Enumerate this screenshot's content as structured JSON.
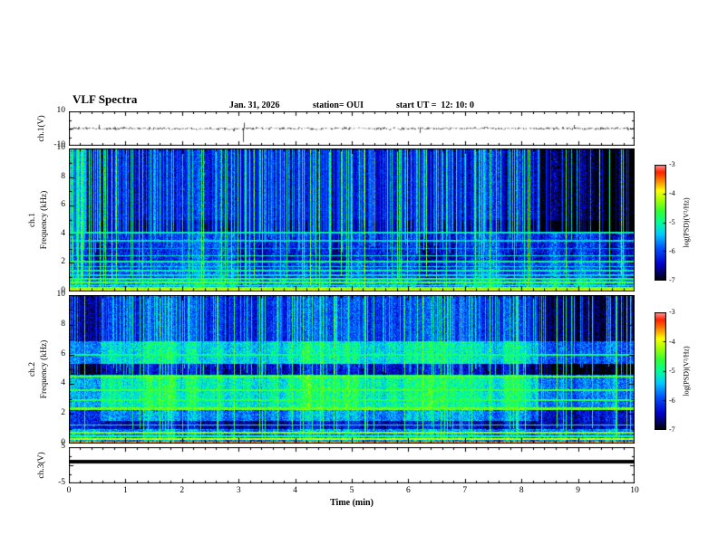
{
  "header": {
    "title": "VLF Spectra",
    "date": "Jan. 31, 2026",
    "station": "station= OUI",
    "start_ut": "start UT =  12: 10: 0"
  },
  "chart_data": {
    "type": "heatmap",
    "title": "VLF Spectra",
    "xlabel": "Time (min)",
    "xlim": [
      0,
      10
    ],
    "xticks": [
      0,
      1,
      2,
      3,
      4,
      5,
      6,
      7,
      8,
      9,
      10
    ],
    "colorbar": {
      "label": "log(PSD)(V²/Hz)",
      "lim": [
        -7,
        -3
      ],
      "ticks": [
        "-3",
        "-4",
        "-5",
        "-6",
        "-7"
      ]
    },
    "colormap": [
      [
        0,
        "#000000"
      ],
      [
        0.05,
        "#00004d"
      ],
      [
        0.14,
        "#0000cc"
      ],
      [
        0.28,
        "#0055ff"
      ],
      [
        0.4,
        "#00ccff"
      ],
      [
        0.5,
        "#00ff99"
      ],
      [
        0.6,
        "#33ff33"
      ],
      [
        0.7,
        "#aaff00"
      ],
      [
        0.78,
        "#ffff00"
      ],
      [
        0.86,
        "#ff8800"
      ],
      [
        0.94,
        "#ff2200"
      ],
      [
        1,
        "#ff9999"
      ]
    ],
    "panels": [
      {
        "id": "wave1",
        "type": "line",
        "ylabel": "ch.1(V)",
        "ylim": [
          -10,
          10
        ],
        "ytick_labels": [
          {
            "v": 10,
            "t": "10"
          },
          {
            "v": -10,
            "t": "-10"
          }
        ],
        "noise_amp": 1.1,
        "spikes": [
          {
            "t": 0.53,
            "amp": 2.2
          },
          {
            "t": 3.07,
            "amp": -7.8
          },
          {
            "t": 3.1,
            "amp": 3.4
          },
          {
            "t": 6.2,
            "amp": -2.6
          },
          {
            "t": 8.92,
            "amp": 2.1
          }
        ],
        "seed": 1234
      },
      {
        "id": "spec1",
        "type": "heatmap",
        "ylabel_lines": [
          "ch.1",
          "Frequency (kHz)"
        ],
        "ylim": [
          0,
          10
        ],
        "yticks": [
          0,
          2,
          4,
          6,
          8,
          10
        ],
        "seed": 20260131,
        "noise": 0.65,
        "bands": [
          {
            "f0": 5.0,
            "f1": 10.01,
            "v": -6.45
          },
          {
            "f0": 4.05,
            "f1": 5.0,
            "v": -6.95
          },
          {
            "f0": 2.05,
            "f1": 4.05,
            "v": -6.15
          },
          {
            "f0": 0.85,
            "f1": 2.05,
            "v": -5.9
          },
          {
            "f0": 0.0,
            "f1": 0.85,
            "v": -5.45
          }
        ],
        "lines": [
          {
            "f": 4.1,
            "v": -5.1,
            "w": 0.07
          },
          {
            "f": 3.55,
            "v": -5.35,
            "w": 0.06
          },
          {
            "f": 3.0,
            "v": -5.7,
            "w": 0.05
          },
          {
            "f": 2.5,
            "v": -5.25,
            "w": 0.06
          },
          {
            "f": 2.1,
            "v": -4.95,
            "w": 0.07
          },
          {
            "f": 1.75,
            "v": -5.4,
            "w": 0.05
          },
          {
            "f": 1.45,
            "v": -5.05,
            "w": 0.06
          },
          {
            "f": 1.15,
            "v": -5.3,
            "w": 0.05
          },
          {
            "f": 0.9,
            "v": -4.75,
            "w": 0.07
          },
          {
            "f": 0.62,
            "v": -4.55,
            "w": 0.07
          },
          {
            "f": 0.42,
            "v": -5.0,
            "w": 0.05
          },
          {
            "f": 0.27,
            "v": -4.35,
            "w": 0.06
          },
          {
            "f": 0.13,
            "v": -3.95,
            "w": 0.05
          },
          {
            "f": 0.04,
            "v": -3.45,
            "w": 0.045
          }
        ],
        "streaks": {
          "pMain": 0.78,
          "ampMax": 2.6,
          "fFloor": 4.3
        },
        "quiet": {
          "after": 8.33,
          "before": -1,
          "f": 4.05,
          "delta": -0.5,
          "p": 0.25
        },
        "burst_before": 0.28
      },
      {
        "id": "spec2",
        "type": "heatmap",
        "ylabel_lines": [
          "ch.2",
          "Frequency (kHz)"
        ],
        "ylim": [
          0,
          10
        ],
        "yticks": [
          0,
          2,
          4,
          6,
          8,
          10
        ],
        "seed": 98765,
        "noise": 0.6,
        "bands": [
          {
            "f0": 6.9,
            "f1": 10.01,
            "v": -6.1
          },
          {
            "f0": 5.35,
            "f1": 6.9,
            "v": -5.15
          },
          {
            "f0": 4.65,
            "f1": 5.35,
            "v": -6.4
          },
          {
            "f0": 2.3,
            "f1": 4.65,
            "v": -4.95
          },
          {
            "f0": 1.55,
            "f1": 2.3,
            "v": -5.55
          },
          {
            "f0": 0.95,
            "f1": 1.55,
            "v": -6.35
          },
          {
            "f0": 0.0,
            "f1": 0.95,
            "v": -5.6
          }
        ],
        "lines": [
          {
            "f": 6.0,
            "v": -4.95,
            "w": 0.06
          },
          {
            "f": 4.5,
            "v": -4.5,
            "w": 0.07
          },
          {
            "f": 3.6,
            "v": -4.65,
            "w": 0.08
          },
          {
            "f": 2.9,
            "v": -4.75,
            "w": 0.06
          },
          {
            "f": 2.35,
            "v": -4.45,
            "w": 0.07
          },
          {
            "f": 1.25,
            "v": -4.95,
            "w": 0.05
          },
          {
            "f": 0.75,
            "v": -4.35,
            "w": 0.07
          },
          {
            "f": 0.5,
            "v": -4.85,
            "w": 0.05
          },
          {
            "f": 0.28,
            "v": -4.15,
            "w": 0.06
          },
          {
            "f": 0.07,
            "v": -3.6,
            "w": 0.05
          }
        ],
        "streaks": {
          "pMain": 0.85,
          "ampMax": 2.4,
          "fFloor": 6.0
        },
        "quiet": {
          "after": 8.3,
          "before": 0.55,
          "f": 1.5,
          "delta": -0.7,
          "p": 0.4
        },
        "burst_before": 0
      },
      {
        "id": "wave3",
        "type": "line",
        "ylabel": "ch.3(V)",
        "ylim": [
          -5,
          5
        ],
        "ytick_labels": [
          {
            "v": 5,
            "t": "5"
          },
          {
            "v": -5,
            "t": "-5"
          }
        ],
        "line_value": 1.0,
        "seed": 7
      }
    ]
  }
}
